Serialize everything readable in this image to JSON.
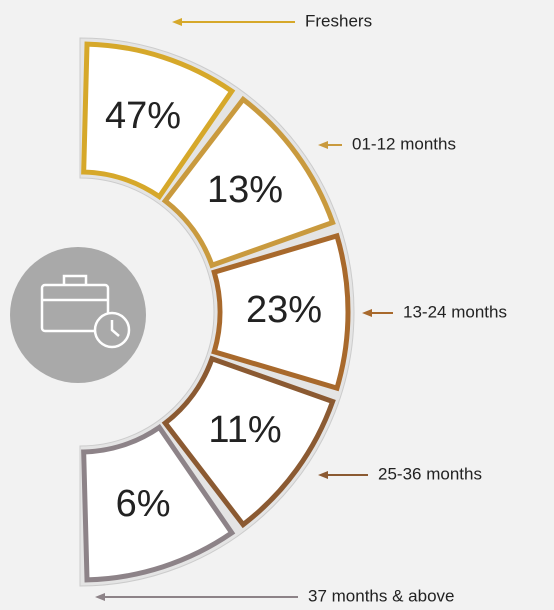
{
  "chart_data": {
    "type": "segments",
    "categories": [
      "Freshers",
      "01-12 months",
      "13-24 months",
      "25-36 months",
      "37 months & above"
    ],
    "values": [
      47,
      13,
      23,
      11,
      6
    ],
    "value_labels": [
      "47%",
      "13%",
      "23%",
      "11%",
      "6%"
    ],
    "colors": [
      "#d6a82a",
      "#c99a3e",
      "#a8692c",
      "#8b5a32",
      "#8d8388"
    ]
  }
}
